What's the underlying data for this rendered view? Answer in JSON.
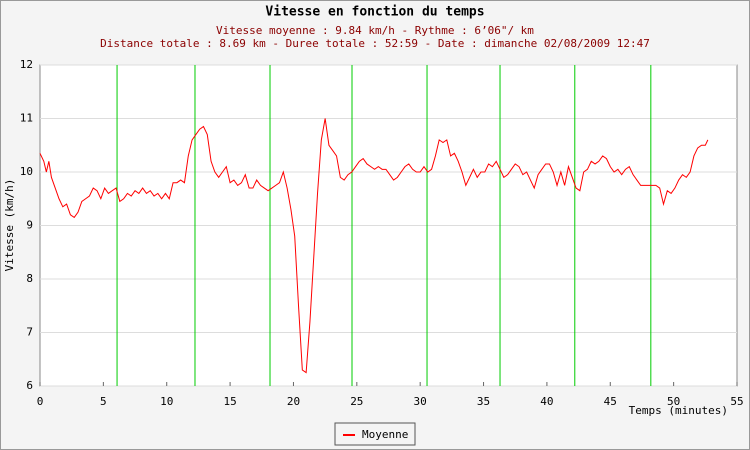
{
  "chart_data": {
    "type": "line",
    "title": "Vitesse en fonction du temps",
    "subtitle": [
      "Vitesse moyenne : 9.84 km/h - Rythme : 6’06\"/ km",
      "Distance totale : 8.69 km - Duree totale : 52:59 - Date : dimanche 02/08/2009 12:47"
    ],
    "xlabel": "Temps (minutes)",
    "ylabel": "Vitesse (km/h)",
    "xlim": [
      0,
      55
    ],
    "ylim": [
      6,
      12
    ],
    "xticks": [
      0,
      5,
      10,
      15,
      20,
      25,
      30,
      35,
      40,
      45,
      50,
      55
    ],
    "yticks": [
      6,
      7,
      8,
      9,
      10,
      11,
      12
    ],
    "grid": true,
    "legend": "bottom",
    "vlines": [
      6.08,
      12.23,
      18.15,
      24.62,
      30.54,
      36.3,
      42.2,
      48.2
    ],
    "vline_color": "#00cc00",
    "x": [
      0,
      0.3,
      0.5,
      0.7,
      0.9,
      1.2,
      1.5,
      1.8,
      2.1,
      2.4,
      2.7,
      3.0,
      3.3,
      3.6,
      3.9,
      4.2,
      4.5,
      4.8,
      5.1,
      5.4,
      5.7,
      6.0,
      6.3,
      6.6,
      6.9,
      7.2,
      7.5,
      7.8,
      8.1,
      8.4,
      8.7,
      9.0,
      9.3,
      9.6,
      9.9,
      10.2,
      10.5,
      10.8,
      11.1,
      11.4,
      11.7,
      12.0,
      12.3,
      12.6,
      12.9,
      13.2,
      13.5,
      13.8,
      14.1,
      14.4,
      14.7,
      15.0,
      15.3,
      15.6,
      15.9,
      16.2,
      16.5,
      16.8,
      17.1,
      17.4,
      17.7,
      18.0,
      18.3,
      18.6,
      18.9,
      19.2,
      19.5,
      19.8,
      20.1,
      20.4,
      20.7,
      21.0,
      21.3,
      21.6,
      21.9,
      22.2,
      22.5,
      22.8,
      23.1,
      23.4,
      23.7,
      24.0,
      24.3,
      24.6,
      24.9,
      25.2,
      25.5,
      25.8,
      26.1,
      26.4,
      26.7,
      27.0,
      27.3,
      27.6,
      27.9,
      28.2,
      28.5,
      28.8,
      29.1,
      29.4,
      29.7,
      30.0,
      30.3,
      30.6,
      30.9,
      31.2,
      31.5,
      31.8,
      32.1,
      32.4,
      32.7,
      33.0,
      33.3,
      33.6,
      33.9,
      34.2,
      34.5,
      34.8,
      35.1,
      35.4,
      35.7,
      36.0,
      36.3,
      36.6,
      36.9,
      37.2,
      37.5,
      37.8,
      38.1,
      38.4,
      38.7,
      39.0,
      39.3,
      39.6,
      39.9,
      40.2,
      40.5,
      40.8,
      41.1,
      41.4,
      41.7,
      42.0,
      42.3,
      42.6,
      42.9,
      43.2,
      43.5,
      43.8,
      44.1,
      44.4,
      44.7,
      45.0,
      45.3,
      45.6,
      45.9,
      46.2,
      46.5,
      46.8,
      47.1,
      47.4,
      47.7,
      48.0,
      48.3,
      48.6,
      48.9,
      49.2,
      49.5,
      49.8,
      50.1,
      50.4,
      50.7,
      51.0,
      51.3,
      51.6,
      51.9,
      52.2,
      52.5,
      52.7
    ],
    "series": [
      {
        "name": "Moyenne",
        "color": "#ff0000",
        "values": [
          10.35,
          10.2,
          10.0,
          10.2,
          9.9,
          9.7,
          9.5,
          9.35,
          9.4,
          9.2,
          9.15,
          9.25,
          9.45,
          9.5,
          9.55,
          9.7,
          9.65,
          9.5,
          9.7,
          9.6,
          9.65,
          9.7,
          9.45,
          9.5,
          9.6,
          9.55,
          9.65,
          9.6,
          9.7,
          9.6,
          9.65,
          9.55,
          9.6,
          9.5,
          9.6,
          9.5,
          9.8,
          9.8,
          9.85,
          9.8,
          10.3,
          10.6,
          10.7,
          10.8,
          10.85,
          10.7,
          10.2,
          10.0,
          9.9,
          10.0,
          10.1,
          9.8,
          9.85,
          9.75,
          9.8,
          9.95,
          9.7,
          9.7,
          9.85,
          9.75,
          9.7,
          9.65,
          9.7,
          9.75,
          9.8,
          10.0,
          9.7,
          9.3,
          8.8,
          7.5,
          6.3,
          6.25,
          7.2,
          8.4,
          9.6,
          10.6,
          11.0,
          10.5,
          10.4,
          10.3,
          9.9,
          9.85,
          9.95,
          10.0,
          10.1,
          10.2,
          10.25,
          10.15,
          10.1,
          10.05,
          10.1,
          10.05,
          10.05,
          9.95,
          9.85,
          9.9,
          10.0,
          10.1,
          10.15,
          10.05,
          10.0,
          10.0,
          10.1,
          10.0,
          10.05,
          10.3,
          10.6,
          10.55,
          10.6,
          10.3,
          10.35,
          10.2,
          10.0,
          9.75,
          9.9,
          10.05,
          9.9,
          10.0,
          10.0,
          10.15,
          10.1,
          10.2,
          10.05,
          9.9,
          9.95,
          10.05,
          10.15,
          10.1,
          9.95,
          10.0,
          9.85,
          9.7,
          9.95,
          10.05,
          10.15,
          10.15,
          10.0,
          9.75,
          10.0,
          9.75,
          10.1,
          9.9,
          9.7,
          9.65,
          10.0,
          10.05,
          10.2,
          10.15,
          10.2,
          10.3,
          10.25,
          10.1,
          10.0,
          10.05,
          9.95,
          10.05,
          10.1,
          9.95,
          9.85,
          9.75,
          9.75,
          9.75,
          9.75,
          9.75,
          9.7,
          9.4,
          9.65,
          9.6,
          9.7,
          9.85,
          9.95,
          9.9,
          10.0,
          10.3,
          10.45,
          10.5,
          10.5,
          10.6
        ]
      }
    ]
  }
}
